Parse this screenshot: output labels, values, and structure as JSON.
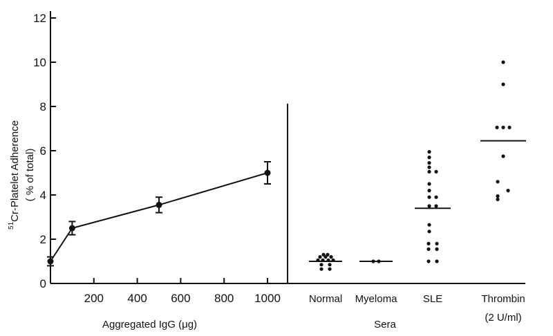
{
  "chart_data": [
    {
      "type": "line",
      "xlabel": "Aggregated IgG (μg)",
      "ylabel_prefix": "51",
      "ylabel": "Cr-Platelet Adherence",
      "ylabel_sub": "( % of total)",
      "xlim": [
        0,
        1100
      ],
      "ylim": [
        0,
        12
      ],
      "x_ticks": [
        "200",
        "400",
        "600",
        "800",
        "1000"
      ],
      "y_ticks": [
        "0",
        "2",
        "4",
        "6",
        "8",
        "10",
        "12"
      ],
      "grid": false,
      "series": [
        {
          "x": [
            0,
            100,
            500,
            1000
          ],
          "y": [
            1.0,
            2.5,
            3.55,
            5.0
          ],
          "error": [
            0.2,
            0.3,
            0.35,
            0.5
          ]
        }
      ]
    },
    {
      "type": "scatter",
      "xlabel": "Sera",
      "ylim": [
        0,
        12
      ],
      "groups": [
        {
          "label": "Normal",
          "label_sub": "",
          "mean": 1.0,
          "points": [
            {
              "y": 1.3,
              "dx": -3
            },
            {
              "y": 1.3,
              "dx": 3
            },
            {
              "y": 1.2,
              "dx": -8
            },
            {
              "y": 1.2,
              "dx": 0
            },
            {
              "y": 1.2,
              "dx": 8
            },
            {
              "y": 1.05,
              "dx": -11
            },
            {
              "y": 1.05,
              "dx": -4
            },
            {
              "y": 1.05,
              "dx": 4
            },
            {
              "y": 1.05,
              "dx": 11
            },
            {
              "y": 0.85,
              "dx": -6
            },
            {
              "y": 0.85,
              "dx": 6
            },
            {
              "y": 0.65,
              "dx": -6
            },
            {
              "y": 0.65,
              "dx": 6
            }
          ]
        },
        {
          "label": "Myeloma",
          "label_sub": "",
          "mean": 1.0,
          "points": [
            {
              "y": 1.0,
              "dx": -4
            },
            {
              "y": 1.0,
              "dx": 4
            }
          ]
        },
        {
          "label": "SLE",
          "label_sub": "",
          "mean": 3.4,
          "points": [
            {
              "y": 5.95,
              "dx": -5
            },
            {
              "y": 5.7,
              "dx": -5
            },
            {
              "y": 5.45,
              "dx": -5
            },
            {
              "y": 5.25,
              "dx": -5
            },
            {
              "y": 5.05,
              "dx": -5
            },
            {
              "y": 5.05,
              "dx": 5
            },
            {
              "y": 4.5,
              "dx": -5
            },
            {
              "y": 4.2,
              "dx": -5
            },
            {
              "y": 3.9,
              "dx": -5
            },
            {
              "y": 3.9,
              "dx": 5
            },
            {
              "y": 3.5,
              "dx": -5
            },
            {
              "y": 3.5,
              "dx": 5
            },
            {
              "y": 2.65,
              "dx": -5
            },
            {
              "y": 2.35,
              "dx": -5
            },
            {
              "y": 1.8,
              "dx": -6
            },
            {
              "y": 1.8,
              "dx": 6
            },
            {
              "y": 1.55,
              "dx": -6
            },
            {
              "y": 1.55,
              "dx": 6
            },
            {
              "y": 1.0,
              "dx": -6
            },
            {
              "y": 1.0,
              "dx": 6
            }
          ]
        },
        {
          "label": "Thrombin",
          "label_sub": "(2 U/ml)",
          "mean": 6.45,
          "points": [
            {
              "y": 10.0,
              "dx": 0
            },
            {
              "y": 9.0,
              "dx": 0
            },
            {
              "y": 7.05,
              "dx": -9
            },
            {
              "y": 7.05,
              "dx": 0
            },
            {
              "y": 7.05,
              "dx": 9
            },
            {
              "y": 5.75,
              "dx": 0
            },
            {
              "y": 4.6,
              "dx": -8
            },
            {
              "y": 4.2,
              "dx": 7
            },
            {
              "y": 3.95,
              "dx": -8
            },
            {
              "y": 3.8,
              "dx": -8
            }
          ]
        }
      ]
    }
  ]
}
